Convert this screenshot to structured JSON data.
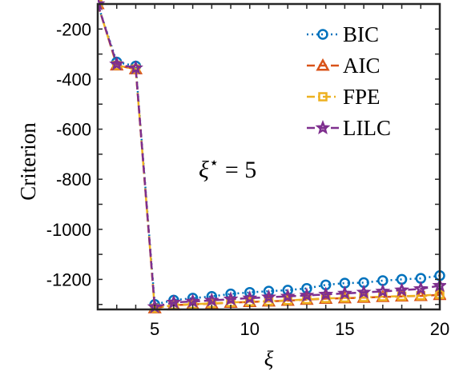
{
  "chart_data": {
    "type": "line",
    "xlabel": "ξ",
    "ylabel": "Criterion",
    "xlim": [
      2,
      20
    ],
    "ylim": [
      -1320,
      -100
    ],
    "xticks": [
      5,
      10,
      15,
      20
    ],
    "yticks": [
      -200,
      -400,
      -600,
      -800,
      -1000,
      -1200
    ],
    "grid": false,
    "legend_position": "top-right",
    "x": [
      2,
      3,
      4,
      5,
      6,
      7,
      8,
      9,
      10,
      11,
      12,
      13,
      14,
      15,
      16,
      17,
      18,
      19,
      20
    ],
    "series": [
      {
        "name": "BIC",
        "color": "#0072BD",
        "marker": "circle",
        "linestyle": "dotted",
        "values": [
          -100,
          -332,
          -348,
          -1300,
          -1283,
          -1275,
          -1268,
          -1258,
          -1252,
          -1247,
          -1243,
          -1236,
          -1222,
          -1215,
          -1213,
          -1205,
          -1200,
          -1196,
          -1185
        ]
      },
      {
        "name": "AIC",
        "color": "#D95319",
        "marker": "triangle",
        "linestyle": "dashed",
        "values": [
          -100,
          -345,
          -360,
          -1315,
          -1303,
          -1300,
          -1297,
          -1293,
          -1290,
          -1288,
          -1285,
          -1281,
          -1277,
          -1275,
          -1273,
          -1270,
          -1268,
          -1266,
          -1262
        ]
      },
      {
        "name": "FPE",
        "color": "#EDB120",
        "marker": "square",
        "linestyle": "dashdot",
        "values": [
          -100,
          -345,
          -360,
          -1315,
          -1302,
          -1299,
          -1296,
          -1292,
          -1289,
          -1287,
          -1284,
          -1280,
          -1276,
          -1274,
          -1272,
          -1269,
          -1267,
          -1265,
          -1260
        ]
      },
      {
        "name": "LILC",
        "color": "#7E2F8E",
        "marker": "star",
        "linestyle": "dashed",
        "values": [
          -100,
          -340,
          -356,
          -1310,
          -1292,
          -1288,
          -1284,
          -1279,
          -1275,
          -1271,
          -1268,
          -1264,
          -1260,
          -1256,
          -1252,
          -1248,
          -1243,
          -1238,
          -1225
        ]
      }
    ],
    "annotation": {
      "base": "ξ",
      "sup": "⋆",
      "rest": " = 5"
    }
  }
}
